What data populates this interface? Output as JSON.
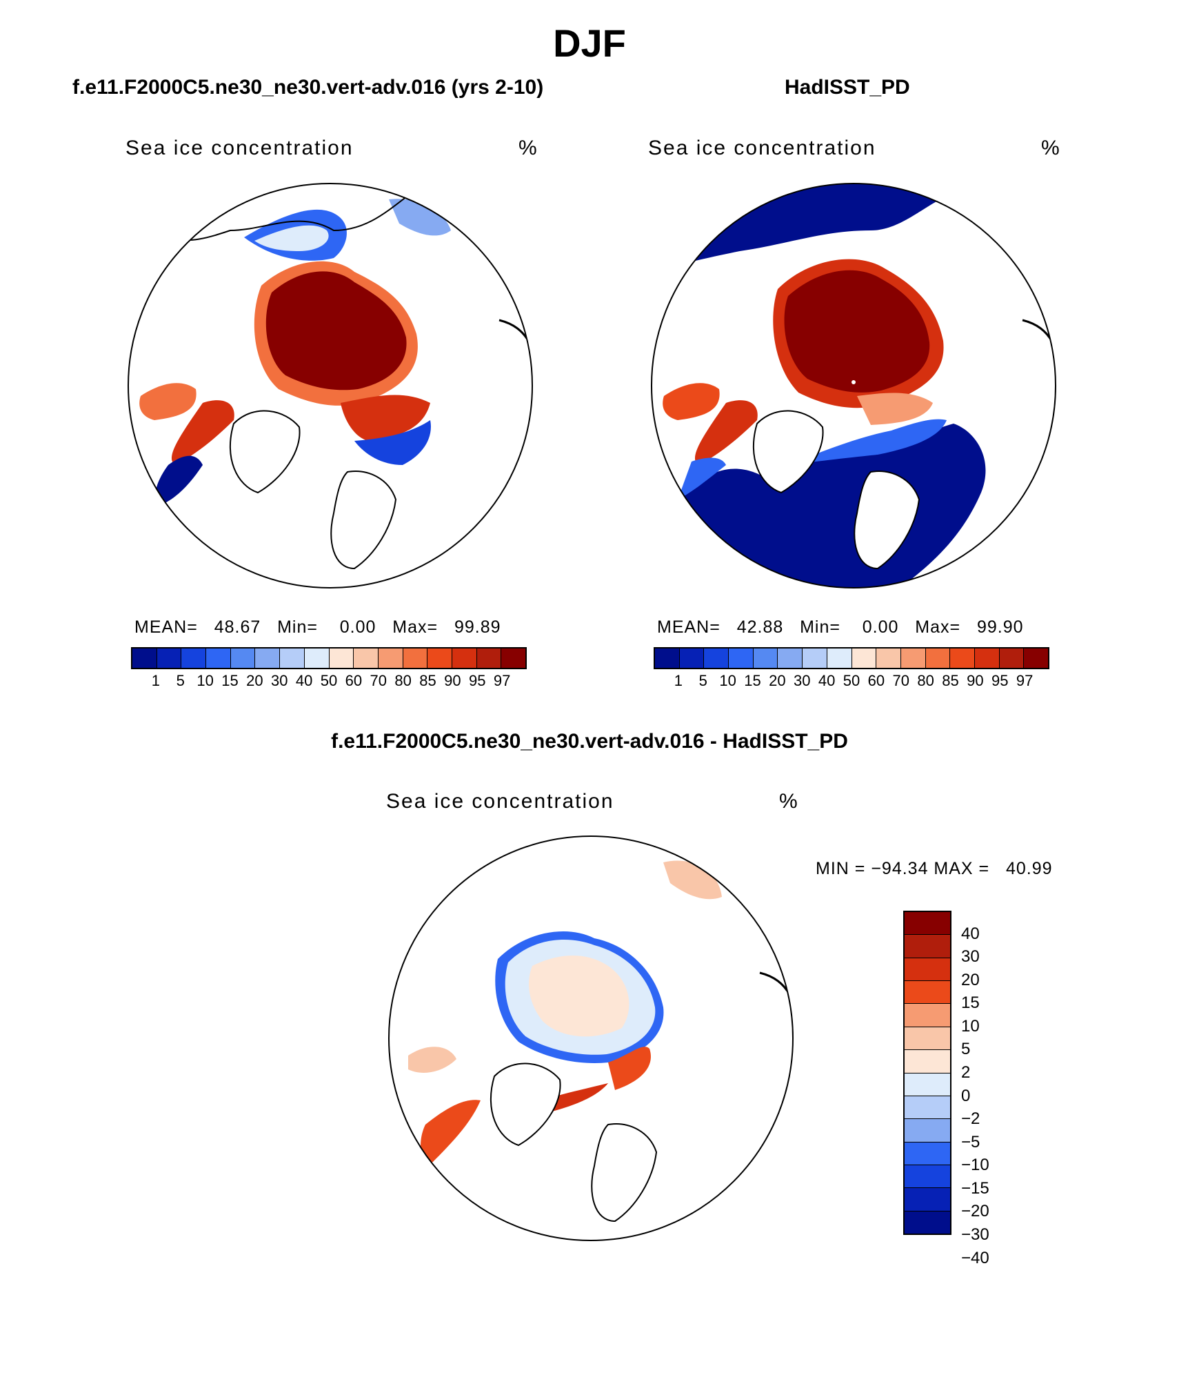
{
  "figure_title": "DJF",
  "panels": [
    {
      "id": "model",
      "title": "f.e11.F2000C5.ne30_ne30.vert-adv.016 (yrs 2-10)",
      "variable": "Sea ice concentration",
      "units": "%",
      "stats": {
        "mean_label": "MEAN=",
        "mean": "48.67",
        "min_label": "Min=",
        "min": "0.00",
        "max_label": "Max=",
        "max": "99.89"
      }
    },
    {
      "id": "obs",
      "title": "HadISST_PD",
      "variable": "Sea ice concentration",
      "units": "%",
      "stats": {
        "mean_label": "MEAN=",
        "mean": "42.88",
        "min_label": "Min=",
        "min": "0.00",
        "max_label": "Max=",
        "max": "99.90"
      }
    },
    {
      "id": "diff",
      "title": "f.e11.F2000C5.ne30_ne30.vert-adv.016 - HadISST_PD",
      "variable": "Sea ice concentration",
      "units": "%",
      "stats_text": "MIN = −94.34 MAX =   40.99"
    }
  ],
  "colorbar_abs": {
    "colors": [
      "#000e8c",
      "#0621b5",
      "#1543de",
      "#2e66f4",
      "#5589f2",
      "#86aaf2",
      "#b5cdf8",
      "#deecfb",
      "#fde6d6",
      "#f9c6a9",
      "#f69b72",
      "#f2703e",
      "#eb4a1a",
      "#d5300f",
      "#b01e0c",
      "#870000"
    ],
    "ticks": [
      "1",
      "5",
      "10",
      "15",
      "20",
      "30",
      "40",
      "50",
      "60",
      "70",
      "80",
      "85",
      "90",
      "95",
      "97"
    ]
  },
  "colorbar_diff": {
    "colors_top_to_bottom": [
      "#870000",
      "#b01e0c",
      "#d5300f",
      "#eb4a1a",
      "#f69b72",
      "#f9c6a9",
      "#fde6d6",
      "#deecfb",
      "#b5cdf8",
      "#86aaf2",
      "#2e66f4",
      "#1543de",
      "#0621b5",
      "#000e8c"
    ],
    "ticks_top_to_bottom": [
      "40",
      "30",
      "20",
      "15",
      "10",
      "5",
      "2",
      "0",
      "−2",
      "−5",
      "−10",
      "−15",
      "−20",
      "−30",
      "−40"
    ]
  }
}
